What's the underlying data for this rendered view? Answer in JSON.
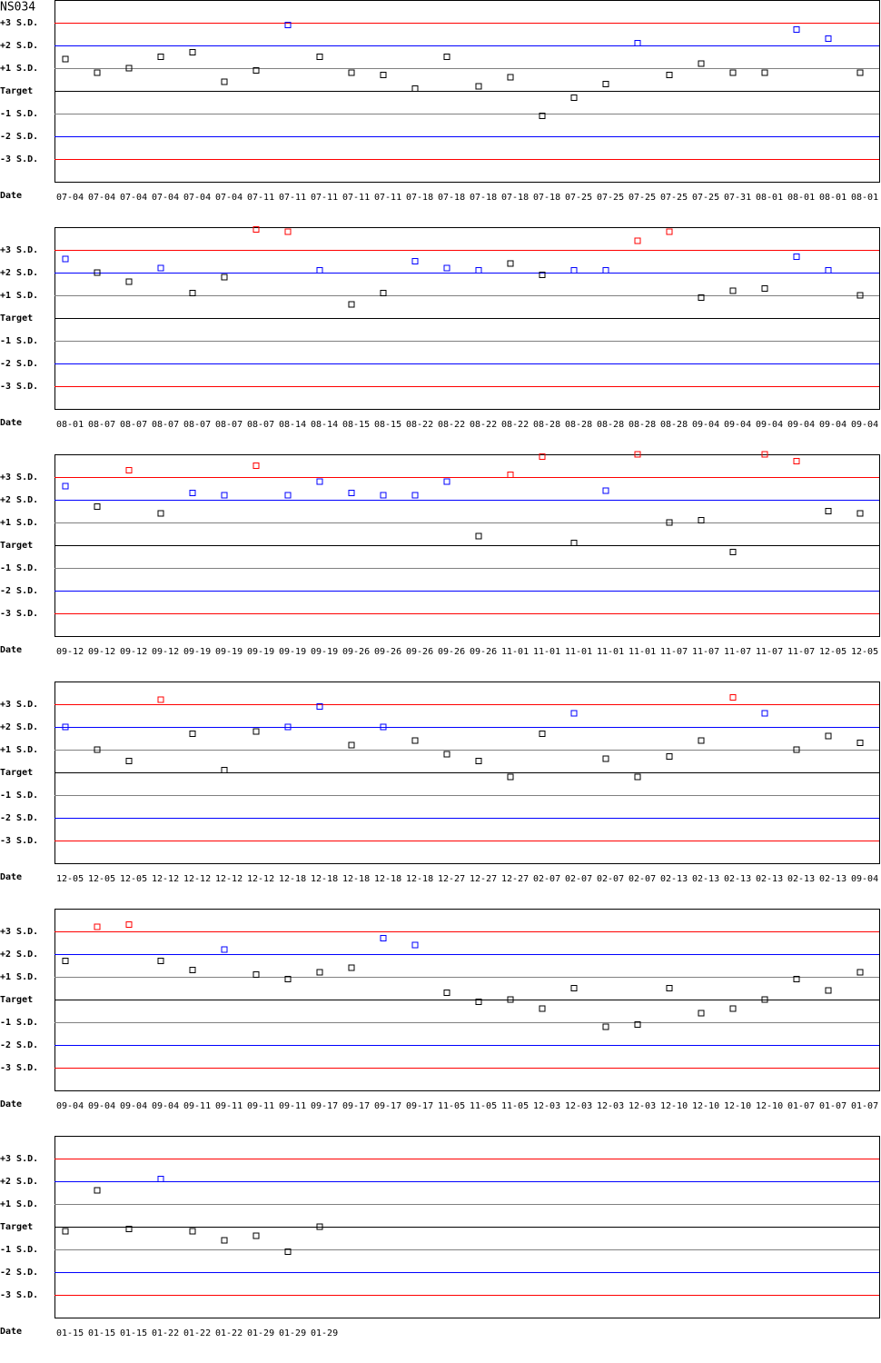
{
  "title": "NS034",
  "chart_data": [
    {
      "type": "scatter",
      "x_label": "Date",
      "ylim": [
        -4,
        4
      ],
      "yticks": [
        {
          "value": 3,
          "label": "+3 S.D."
        },
        {
          "value": 2,
          "label": "+2 S.D."
        },
        {
          "value": 1,
          "label": "+1 S.D."
        },
        {
          "value": 0,
          "label": "Target"
        },
        {
          "value": -1,
          "label": "-1 S.D."
        },
        {
          "value": -2,
          "label": "-2 S.D."
        },
        {
          "value": -3,
          "label": "-3 S.D."
        }
      ],
      "line_colors": [
        "red",
        "blue",
        "gray",
        "black",
        "gray",
        "blue",
        "red"
      ],
      "categories": [
        "07-04",
        "07-04",
        "07-04",
        "07-04",
        "07-04",
        "07-04",
        "07-11",
        "07-11",
        "07-11",
        "07-11",
        "07-11",
        "07-18",
        "07-18",
        "07-18",
        "07-18",
        "07-18",
        "07-25",
        "07-25",
        "07-25",
        "07-25",
        "07-25",
        "07-31",
        "08-01",
        "08-01",
        "08-01",
        "08-01"
      ],
      "values": [
        1.4,
        0.8,
        1.0,
        1.5,
        1.7,
        0.4,
        0.9,
        2.9,
        1.5,
        0.8,
        0.7,
        0.1,
        1.5,
        0.2,
        0.6,
        -1.1,
        -0.3,
        0.3,
        2.1,
        0.7,
        1.2,
        0.8,
        0.8,
        2.7,
        2.3,
        0.8
      ],
      "colors": [
        "black",
        "black",
        "black",
        "black",
        "black",
        "black",
        "black",
        "blue",
        "black",
        "black",
        "black",
        "black",
        "black",
        "black",
        "black",
        "black",
        "black",
        "black",
        "blue",
        "black",
        "black",
        "black",
        "black",
        "blue",
        "blue",
        "black"
      ]
    },
    {
      "type": "scatter",
      "x_label": "Date",
      "ylim": [
        -4,
        4
      ],
      "yticks": [
        {
          "value": 3,
          "label": "+3 S.D."
        },
        {
          "value": 2,
          "label": "+2 S.D."
        },
        {
          "value": 1,
          "label": "+1 S.D."
        },
        {
          "value": 0,
          "label": "Target"
        },
        {
          "value": -1,
          "label": "-1 S.D."
        },
        {
          "value": -2,
          "label": "-2 S.D."
        },
        {
          "value": -3,
          "label": "-3 S.D."
        }
      ],
      "line_colors": [
        "red",
        "blue",
        "gray",
        "black",
        "gray",
        "blue",
        "red"
      ],
      "categories": [
        "08-01",
        "08-07",
        "08-07",
        "08-07",
        "08-07",
        "08-07",
        "08-07",
        "08-14",
        "08-14",
        "08-15",
        "08-15",
        "08-22",
        "08-22",
        "08-22",
        "08-22",
        "08-28",
        "08-28",
        "08-28",
        "08-28",
        "08-28",
        "09-04",
        "09-04",
        "09-04",
        "09-04",
        "09-04",
        "09-04"
      ],
      "values": [
        2.6,
        2.0,
        1.6,
        2.2,
        1.1,
        1.8,
        3.9,
        3.8,
        2.1,
        0.6,
        1.1,
        2.5,
        2.2,
        2.1,
        2.4,
        1.9,
        2.1,
        2.1,
        3.4,
        3.8,
        0.9,
        1.2,
        1.3,
        2.7,
        2.1,
        1.0
      ],
      "colors": [
        "blue",
        "black",
        "black",
        "blue",
        "black",
        "black",
        "red",
        "red",
        "blue",
        "black",
        "black",
        "blue",
        "blue",
        "blue",
        "black",
        "black",
        "blue",
        "blue",
        "red",
        "red",
        "black",
        "black",
        "black",
        "blue",
        "blue",
        "black"
      ]
    },
    {
      "type": "scatter",
      "x_label": "Date",
      "ylim": [
        -4,
        4
      ],
      "yticks": [
        {
          "value": 3,
          "label": "+3 S.D."
        },
        {
          "value": 2,
          "label": "+2 S.D."
        },
        {
          "value": 1,
          "label": "+1 S.D."
        },
        {
          "value": 0,
          "label": "Target"
        },
        {
          "value": -1,
          "label": "-1 S.D."
        },
        {
          "value": -2,
          "label": "-2 S.D."
        },
        {
          "value": -3,
          "label": "-3 S.D."
        }
      ],
      "line_colors": [
        "red",
        "blue",
        "gray",
        "black",
        "gray",
        "blue",
        "red"
      ],
      "categories": [
        "09-12",
        "09-12",
        "09-12",
        "09-12",
        "09-19",
        "09-19",
        "09-19",
        "09-19",
        "09-19",
        "09-26",
        "09-26",
        "09-26",
        "09-26",
        "09-26",
        "11-01",
        "11-01",
        "11-01",
        "11-01",
        "11-01",
        "11-07",
        "11-07",
        "11-07",
        "11-07",
        "11-07",
        "12-05",
        "12-05"
      ],
      "values": [
        2.6,
        1.7,
        3.3,
        1.4,
        2.3,
        2.2,
        3.5,
        2.2,
        2.8,
        2.3,
        2.2,
        2.2,
        2.8,
        0.4,
        3.1,
        3.9,
        0.1,
        2.4,
        4.0,
        1.0,
        1.1,
        -0.3,
        4.0,
        3.7,
        1.5,
        1.4
      ],
      "colors": [
        "blue",
        "black",
        "red",
        "black",
        "blue",
        "blue",
        "red",
        "blue",
        "blue",
        "blue",
        "blue",
        "blue",
        "blue",
        "black",
        "red",
        "red",
        "black",
        "blue",
        "red",
        "black",
        "black",
        "black",
        "red",
        "red",
        "black",
        "black"
      ]
    },
    {
      "type": "scatter",
      "x_label": "Date",
      "ylim": [
        -4,
        4
      ],
      "yticks": [
        {
          "value": 3,
          "label": "+3 S.D."
        },
        {
          "value": 2,
          "label": "+2 S.D."
        },
        {
          "value": 1,
          "label": "+1 S.D."
        },
        {
          "value": 0,
          "label": "Target"
        },
        {
          "value": -1,
          "label": "-1 S.D."
        },
        {
          "value": -2,
          "label": "-2 S.D."
        },
        {
          "value": -3,
          "label": "-3 S.D."
        }
      ],
      "line_colors": [
        "red",
        "blue",
        "gray",
        "black",
        "gray",
        "blue",
        "red"
      ],
      "categories": [
        "12-05",
        "12-05",
        "12-05",
        "12-12",
        "12-12",
        "12-12",
        "12-12",
        "12-18",
        "12-18",
        "12-18",
        "12-18",
        "12-18",
        "12-27",
        "12-27",
        "12-27",
        "02-07",
        "02-07",
        "02-07",
        "02-07",
        "02-13",
        "02-13",
        "02-13",
        "02-13",
        "02-13",
        "02-13",
        "09-04"
      ],
      "values": [
        2.0,
        1.0,
        0.5,
        3.2,
        1.7,
        0.1,
        1.8,
        2.0,
        2.9,
        1.2,
        2.0,
        1.4,
        0.8,
        0.5,
        -0.2,
        1.7,
        2.6,
        0.6,
        -0.2,
        0.7,
        1.4,
        3.3,
        2.6,
        1.0,
        1.6,
        1.3
      ],
      "colors": [
        "blue",
        "black",
        "black",
        "red",
        "black",
        "black",
        "black",
        "blue",
        "blue",
        "black",
        "blue",
        "black",
        "black",
        "black",
        "black",
        "black",
        "blue",
        "black",
        "black",
        "black",
        "black",
        "red",
        "blue",
        "black",
        "black",
        "black"
      ]
    },
    {
      "type": "scatter",
      "x_label": "Date",
      "ylim": [
        -4,
        4
      ],
      "yticks": [
        {
          "value": 3,
          "label": "+3 S.D."
        },
        {
          "value": 2,
          "label": "+2 S.D."
        },
        {
          "value": 1,
          "label": "+1 S.D."
        },
        {
          "value": 0,
          "label": "Target"
        },
        {
          "value": -1,
          "label": "-1 S.D."
        },
        {
          "value": -2,
          "label": "-2 S.D."
        },
        {
          "value": -3,
          "label": "-3 S.D."
        }
      ],
      "line_colors": [
        "red",
        "blue",
        "gray",
        "black",
        "gray",
        "blue",
        "red"
      ],
      "categories": [
        "09-04",
        "09-04",
        "09-04",
        "09-04",
        "09-11",
        "09-11",
        "09-11",
        "09-11",
        "09-17",
        "09-17",
        "09-17",
        "09-17",
        "11-05",
        "11-05",
        "11-05",
        "12-03",
        "12-03",
        "12-03",
        "12-03",
        "12-10",
        "12-10",
        "12-10",
        "12-10",
        "01-07",
        "01-07",
        "01-07"
      ],
      "values": [
        1.7,
        3.2,
        3.3,
        1.7,
        1.3,
        2.2,
        1.1,
        0.9,
        1.2,
        1.4,
        2.7,
        2.4,
        0.3,
        -0.1,
        0,
        -0.4,
        0.5,
        -1.2,
        -1.1,
        0.5,
        -0.6,
        -0.4,
        0,
        0.9,
        0.4,
        1.2
      ],
      "colors": [
        "black",
        "red",
        "red",
        "black",
        "black",
        "blue",
        "black",
        "black",
        "black",
        "black",
        "blue",
        "blue",
        "black",
        "black",
        "black",
        "black",
        "black",
        "black",
        "black",
        "black",
        "black",
        "black",
        "black",
        "black",
        "black",
        "black"
      ]
    },
    {
      "type": "scatter",
      "x_label": "Date",
      "ylim": [
        -4,
        4
      ],
      "yticks": [
        {
          "value": 3,
          "label": "+3 S.D."
        },
        {
          "value": 2,
          "label": "+2 S.D."
        },
        {
          "value": 1,
          "label": "+1 S.D."
        },
        {
          "value": 0,
          "label": "Target"
        },
        {
          "value": -1,
          "label": "-1 S.D."
        },
        {
          "value": -2,
          "label": "-2 S.D."
        },
        {
          "value": -3,
          "label": "-3 S.D."
        }
      ],
      "line_colors": [
        "red",
        "blue",
        "gray",
        "black",
        "gray",
        "blue",
        "red"
      ],
      "categories": [
        "01-15",
        "01-15",
        "01-15",
        "01-22",
        "01-22",
        "01-22",
        "01-29",
        "01-29",
        "01-29"
      ],
      "values": [
        -0.2,
        1.6,
        -0.1,
        2.1,
        -0.2,
        -0.6,
        -0.4,
        -1.1,
        0
      ],
      "colors": [
        "black",
        "black",
        "black",
        "blue",
        "black",
        "black",
        "black",
        "black",
        "black"
      ]
    }
  ]
}
